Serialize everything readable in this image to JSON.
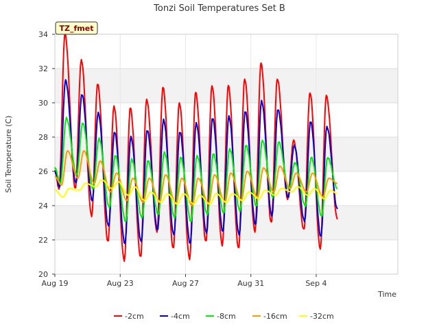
{
  "chart_data": {
    "type": "line",
    "title": "Tonzi Soil Temperatures Set B",
    "xlabel": "Time",
    "ylabel": "Soil Temperature (C)",
    "badge": "TZ_fmet",
    "xlim": [
      0,
      21
    ],
    "ylim": [
      20,
      34
    ],
    "x_ticks": [
      {
        "value": 0,
        "label": "Aug 19"
      },
      {
        "value": 4,
        "label": "Aug 23"
      },
      {
        "value": 8,
        "label": "Aug 27"
      },
      {
        "value": 12,
        "label": "Aug 31"
      },
      {
        "value": 16,
        "label": "Sep 4"
      }
    ],
    "y_ticks": [
      20,
      22,
      24,
      26,
      28,
      30,
      32,
      34
    ],
    "grid": true,
    "legend_position": "bottom",
    "day_peak_time": 0.62,
    "series": [
      {
        "name": "-2cm",
        "color": "#ff0000",
        "amplitude": 1.0,
        "phase": 0.0,
        "start": 26.0,
        "end": 23.2,
        "max": [
          34.0,
          32.5,
          31.1,
          29.8,
          29.7,
          30.2,
          30.9,
          30.0,
          30.6,
          31.0,
          31.0,
          31.4,
          32.3,
          31.4,
          27.8,
          30.6,
          30.4
        ],
        "min": [
          25.0,
          25.0,
          23.4,
          21.9,
          20.8,
          21.0,
          22.5,
          21.5,
          20.9,
          21.9,
          21.7,
          21.5,
          22.5,
          23.0,
          24.4,
          22.6,
          21.5
        ]
      },
      {
        "name": "-4cm",
        "color": "#0000cc",
        "amplitude": 0.9,
        "phase": 0.06,
        "start": 26.0,
        "end": 23.8,
        "max": [
          31.3,
          30.5,
          29.4,
          28.3,
          28.0,
          28.4,
          29.0,
          28.3,
          28.8,
          29.1,
          29.2,
          29.5,
          30.1,
          29.6,
          27.5,
          28.9,
          28.6
        ],
        "min": [
          25.1,
          25.3,
          24.3,
          22.8,
          21.8,
          21.9,
          22.6,
          22.3,
          21.8,
          22.4,
          22.5,
          22.3,
          22.9,
          23.4,
          24.5,
          23.1,
          22.2
        ]
      },
      {
        "name": "-8cm",
        "color": "#00ee00",
        "amplitude": 0.75,
        "phase": 0.14,
        "start": 26.2,
        "end": 25.0,
        "max": [
          29.1,
          28.8,
          27.9,
          26.9,
          26.7,
          26.6,
          27.1,
          26.8,
          26.9,
          27.0,
          27.3,
          27.5,
          27.8,
          27.7,
          26.5,
          26.8,
          26.8
        ],
        "min": [
          25.3,
          25.8,
          25.0,
          23.9,
          23.1,
          23.3,
          23.5,
          23.3,
          23.1,
          23.5,
          23.6,
          23.7,
          24.0,
          24.5,
          25.0,
          24.0,
          23.4
        ]
      },
      {
        "name": "-16cm",
        "color": "#ff9900",
        "amplitude": 0.5,
        "phase": 0.26,
        "start": 25.7,
        "end": 25.3,
        "max": [
          27.2,
          27.2,
          26.6,
          25.9,
          25.6,
          25.6,
          25.8,
          25.6,
          25.6,
          25.8,
          25.9,
          26.0,
          26.2,
          26.3,
          25.9,
          25.9,
          25.6
        ],
        "min": [
          25.2,
          25.6,
          25.3,
          24.8,
          24.3,
          24.2,
          24.2,
          24.1,
          24.0,
          24.1,
          24.2,
          24.3,
          24.5,
          24.8,
          25.0,
          24.8,
          24.5
        ]
      },
      {
        "name": "-32cm",
        "color": "#ffff00",
        "amplitude": 0.35,
        "phase": 0.42,
        "start": 24.9,
        "end": 24.7,
        "max": [
          25.0,
          25.3,
          25.5,
          25.4,
          25.1,
          24.8,
          24.7,
          24.7,
          24.6,
          24.7,
          24.7,
          24.8,
          24.9,
          25.0,
          25.1,
          25.0,
          24.9
        ],
        "min": [
          24.5,
          24.9,
          25.1,
          25.0,
          24.6,
          24.3,
          24.2,
          24.1,
          24.1,
          24.1,
          24.2,
          24.3,
          24.4,
          24.6,
          24.8,
          24.6,
          24.4
        ]
      }
    ]
  }
}
